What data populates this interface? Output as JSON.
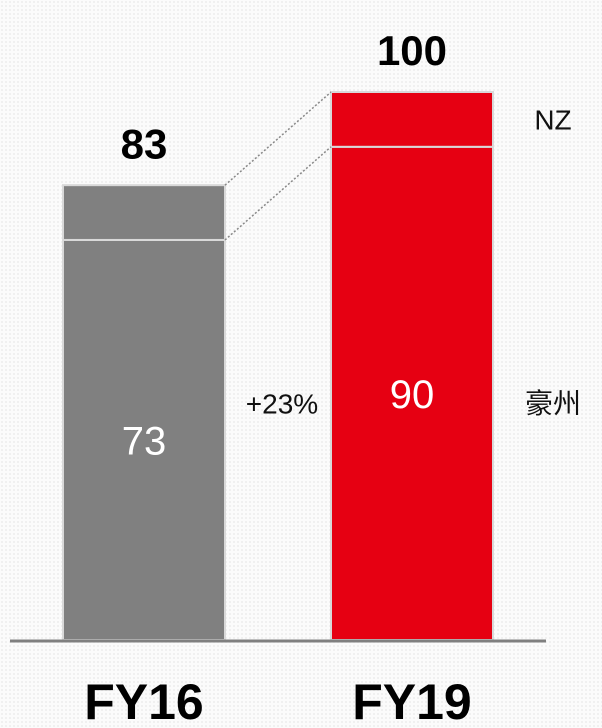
{
  "chart_data": {
    "type": "stacked_bar",
    "categories": [
      "FY16",
      "FY19"
    ],
    "bar_colors": [
      "#808080",
      "#e60012"
    ],
    "series": [
      {
        "name": "豪州",
        "values": [
          73,
          90
        ]
      },
      {
        "name": "NZ",
        "values": [
          10,
          10
        ]
      }
    ],
    "totals": [
      83,
      100
    ],
    "annotation": "+23%",
    "ylim": [
      0,
      100
    ]
  }
}
